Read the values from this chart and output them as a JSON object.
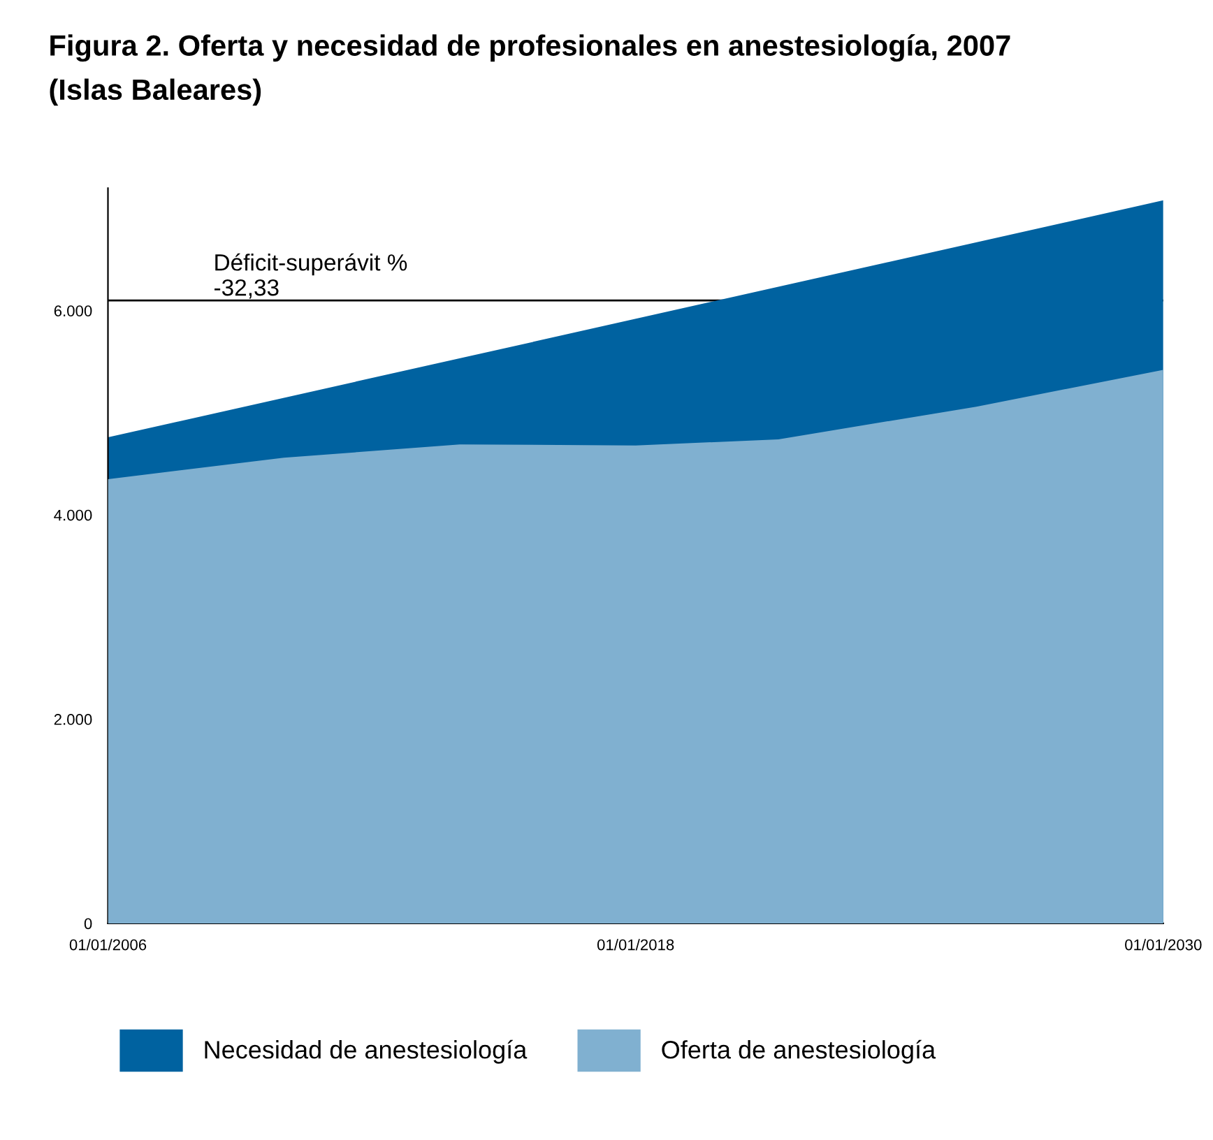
{
  "chart_data": {
    "type": "area",
    "title": "Figura 2. Oferta y necesidad de profesionales en anestesiología, 2007\n(Islas Baleares)",
    "series": [
      {
        "name": "Necesidad de anestesiología",
        "color": "#0062a0",
        "x": [
          "2006-01-01",
          "2030-01-01"
        ],
        "values": [
          4760,
          7080
        ]
      },
      {
        "name": "Oferta de anestesiología",
        "color": "#80b0d0",
        "x": [
          "2006-01-01",
          "2010-01-01",
          "2014-01-01",
          "2018-01-01",
          "2021-04-01",
          "2025-10-01",
          "2030-01-01"
        ],
        "values": [
          4350,
          4560,
          4690,
          4680,
          4740,
          5060,
          5420
        ]
      }
    ],
    "ref_lines": [
      {
        "axis": "y",
        "value": 6100,
        "label": "Déficit-superávit %\n-32,33",
        "color": "#000000"
      }
    ],
    "xlim": [
      "2006-01-01",
      "2030-01-01"
    ],
    "xticks": [
      {
        "value": "2006-01-01",
        "label": "01/01/2006"
      },
      {
        "value": "2018-01-01",
        "label": "01/01/2018"
      },
      {
        "value": "2030-01-01",
        "label": "01/01/2030"
      }
    ],
    "ylim": [
      0,
      7200
    ],
    "yticks": [
      {
        "value": 0,
        "label": "0"
      },
      {
        "value": 2000,
        "label": "2.000"
      },
      {
        "value": 4000,
        "label": "4.000"
      },
      {
        "value": 6000,
        "label": "6.000"
      }
    ],
    "legend": "bottom"
  }
}
